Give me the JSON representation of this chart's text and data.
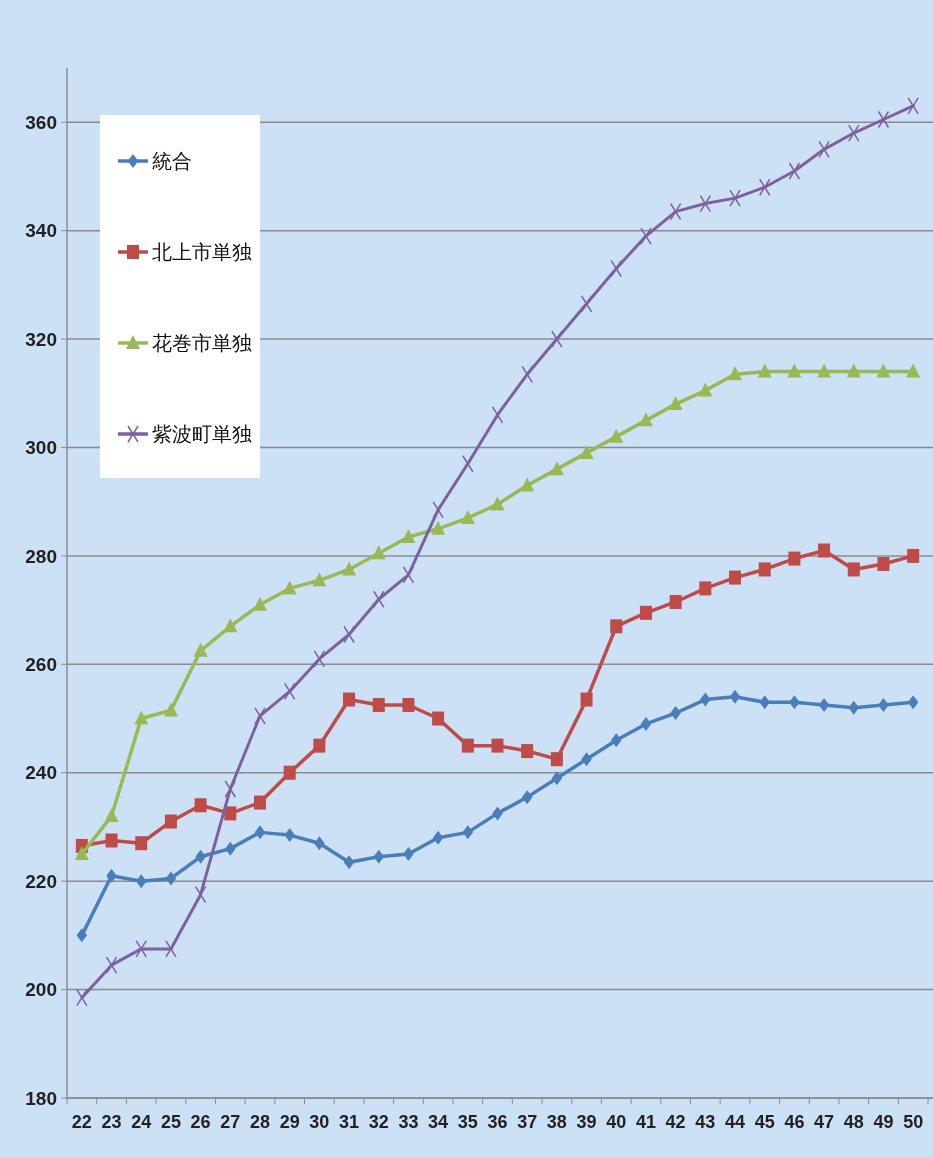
{
  "chart_data": {
    "type": "line",
    "categories": [
      "22",
      "23",
      "24",
      "25",
      "26",
      "27",
      "28",
      "29",
      "30",
      "31",
      "32",
      "33",
      "34",
      "35",
      "36",
      "37",
      "38",
      "39",
      "40",
      "41",
      "42",
      "43",
      "44",
      "45",
      "46",
      "47",
      "48",
      "49",
      "50"
    ],
    "series": [
      {
        "name": "統合",
        "color": "#4a7ebb",
        "marker": "diamond",
        "values": [
          210,
          221,
          220,
          220.5,
          224.5,
          226,
          229,
          228.5,
          227,
          223.5,
          224.5,
          225,
          228,
          229,
          232.5,
          235.5,
          239,
          242.5,
          246,
          249,
          251,
          253.5,
          254,
          253,
          253,
          252.5,
          252,
          252.5,
          253
        ]
      },
      {
        "name": "北上市単独",
        "color": "#be4b48",
        "marker": "square",
        "values": [
          226.5,
          227.5,
          227,
          231,
          234,
          232.5,
          234.5,
          240,
          245,
          253.5,
          252.5,
          252.5,
          250,
          245,
          245,
          244,
          242.5,
          253.5,
          267,
          269.5,
          271.5,
          274,
          276,
          277.5,
          279.5,
          281,
          277.5,
          278.5,
          280
        ]
      },
      {
        "name": "花巻市単独",
        "color": "#98b954",
        "marker": "triangle",
        "values": [
          225,
          232,
          250,
          251.5,
          262.5,
          267,
          271,
          274,
          275.5,
          277.5,
          280.5,
          283.5,
          285,
          287,
          289.5,
          293,
          296,
          299,
          302,
          305,
          308,
          310.5,
          313.5,
          314,
          314,
          314,
          314,
          314,
          314
        ]
      },
      {
        "name": "紫波町単独",
        "color": "#7d60a0",
        "marker": "cross",
        "values": [
          198.5,
          204.5,
          207.5,
          207.5,
          217.5,
          237,
          250.5,
          255,
          261,
          265.5,
          272,
          276.5,
          288.5,
          297,
          306,
          313.5,
          320,
          326.5,
          333,
          339,
          343.5,
          345,
          346,
          348,
          351,
          355,
          358,
          360.5,
          363
        ]
      }
    ],
    "ylim": [
      180,
      370
    ],
    "yticks": [
      180,
      200,
      220,
      240,
      260,
      280,
      300,
      320,
      340,
      360
    ],
    "grid": "y",
    "legend": "top left"
  }
}
